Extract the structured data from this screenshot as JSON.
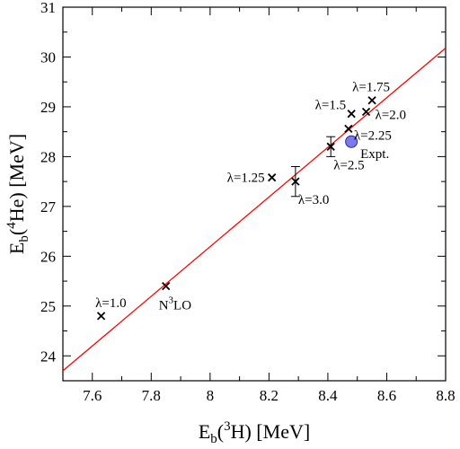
{
  "chart_data": {
    "type": "scatter",
    "title": "",
    "xlabel": {
      "base": "E",
      "sub": "b",
      "open": "(",
      "sup": "3",
      "nucleus": "H",
      "rest": ") [MeV]"
    },
    "ylabel": {
      "base": "E",
      "sub": "b",
      "open": "(",
      "sup": "4",
      "nucleus": "He",
      "rest": ") [MeV]"
    },
    "xlim": [
      7.5,
      8.8
    ],
    "ylim": [
      23.5,
      31.0
    ],
    "xticks": [
      7.6,
      7.8,
      8.0,
      8.2,
      8.4,
      8.6,
      8.8
    ],
    "xtick_labels": [
      "7.6",
      "7.8",
      "8",
      "8.2",
      "8.4",
      "8.6",
      "8.8"
    ],
    "yticks": [
      24,
      25,
      26,
      27,
      28,
      29,
      30,
      31
    ],
    "ytick_labels": [
      "24",
      "25",
      "26",
      "27",
      "28",
      "29",
      "30",
      "31"
    ],
    "grid": false,
    "line_color": "#ff0000",
    "expt_color": "#7a7aee",
    "fit_line": {
      "x": [
        7.5,
        8.8
      ],
      "y": [
        23.7,
        30.18
      ]
    },
    "points": [
      {
        "label": "λ=1.0",
        "x": 7.63,
        "y": 24.8,
        "label_pos": "above-left"
      },
      {
        "label": "N",
        "label_sup": "3",
        "label_rest": "LO",
        "x": 7.85,
        "y": 25.4,
        "label_pos": "below"
      },
      {
        "label": "λ=1.25",
        "x": 8.21,
        "y": 27.58,
        "label_pos": "left"
      },
      {
        "label": "λ=3.0",
        "x": 8.29,
        "y": 27.5,
        "err": 0.3,
        "label_pos": "below-right"
      },
      {
        "label": "λ=2.5",
        "x": 8.41,
        "y": 28.2,
        "err": 0.2,
        "label_pos": "below-right"
      },
      {
        "label": "λ=2.25",
        "x": 8.47,
        "y": 28.56,
        "label_pos": "right"
      },
      {
        "label": "λ=1.5",
        "x": 8.48,
        "y": 28.86,
        "label_pos": "above-left"
      },
      {
        "label": "λ=2.0",
        "x": 8.53,
        "y": 28.9,
        "label_pos": "right"
      },
      {
        "label": "λ=1.75",
        "x": 8.55,
        "y": 29.13,
        "label_pos": "above"
      }
    ],
    "expt": {
      "label": "Expt.",
      "x": 8.48,
      "y": 28.3
    }
  }
}
